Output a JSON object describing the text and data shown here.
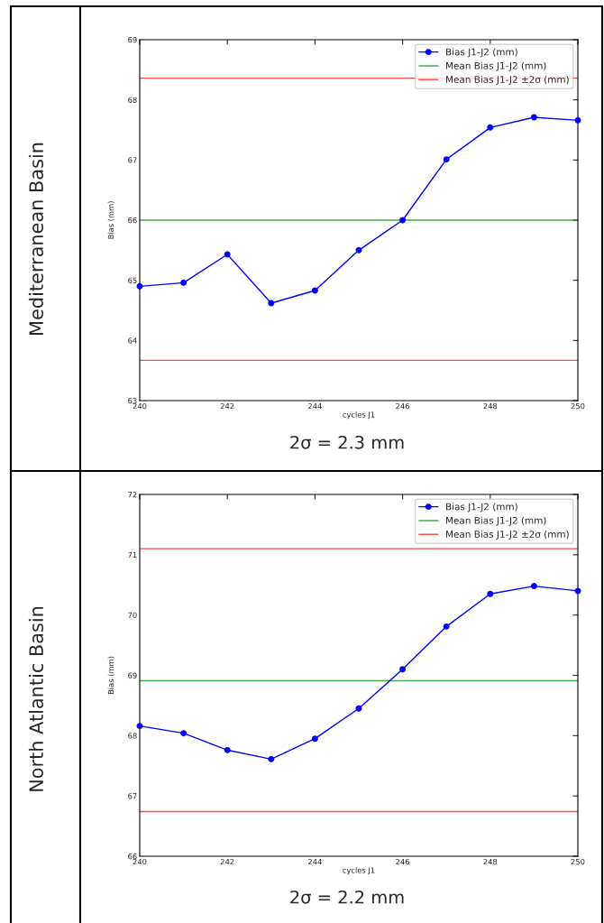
{
  "chart_data": [
    {
      "type": "line",
      "title": "Mediterranean Basin",
      "xlabel": "cycles J1",
      "ylabel": "Bias (mm)",
      "x": [
        240,
        241,
        242,
        243,
        244,
        245,
        246,
        247,
        248,
        249,
        250
      ],
      "series": [
        {
          "name": "Bias J1-J2 (mm)",
          "color": "#0000ff",
          "values": [
            64.9,
            64.96,
            65.43,
            64.62,
            64.83,
            65.5,
            66.0,
            67.01,
            67.54,
            67.71,
            67.66
          ]
        }
      ],
      "ref_lines": [
        {
          "axis": "y",
          "value": 66.0,
          "label": "Mean Bias J1-J2 (mm)",
          "color": "#008000"
        },
        {
          "axis": "y",
          "value": 68.36,
          "label": "Mean Bias J1-J2 ±2σ (mm)",
          "color": "#ff0000"
        },
        {
          "axis": "y",
          "value": 63.67,
          "color": "#ff0000"
        }
      ],
      "xlim": [
        240,
        250
      ],
      "xticks": [
        240,
        242,
        244,
        246,
        248,
        250
      ],
      "ylim": [
        63,
        69
      ],
      "yticks": [
        63,
        64,
        65,
        66,
        67,
        68,
        69
      ],
      "annotations": [
        "2σ = 2.3 mm"
      ],
      "legend": "top right",
      "grid": false,
      "marker": "circle",
      "line_style": "solid"
    },
    {
      "type": "line",
      "title": "North Atlantic Basin",
      "xlabel": "cycles J1",
      "ylabel": "Bias (mm)",
      "x": [
        240,
        241,
        242,
        243,
        244,
        245,
        246,
        247,
        248,
        249,
        250
      ],
      "series": [
        {
          "name": "Bias J1-J2 (mm)",
          "color": "#0000ff",
          "values": [
            68.16,
            68.04,
            67.76,
            67.61,
            67.95,
            68.45,
            69.1,
            69.81,
            70.35,
            70.48,
            70.4
          ]
        }
      ],
      "ref_lines": [
        {
          "axis": "y",
          "value": 68.91,
          "label": "Mean Bias J1-J2 (mm)",
          "color": "#008000"
        },
        {
          "axis": "y",
          "value": 71.1,
          "label": "Mean Bias J1-J2 ±2σ (mm)",
          "color": "#ff0000"
        },
        {
          "axis": "y",
          "value": 66.74,
          "color": "#ff0000"
        }
      ],
      "xlim": [
        240,
        250
      ],
      "xticks": [
        240,
        242,
        244,
        246,
        248,
        250
      ],
      "ylim": [
        66,
        72
      ],
      "yticks": [
        66,
        67,
        68,
        69,
        70,
        71,
        72
      ],
      "annotations": [
        "2σ = 2.2 mm"
      ],
      "legend": "top right",
      "grid": false,
      "marker": "circle",
      "line_style": "solid"
    }
  ]
}
